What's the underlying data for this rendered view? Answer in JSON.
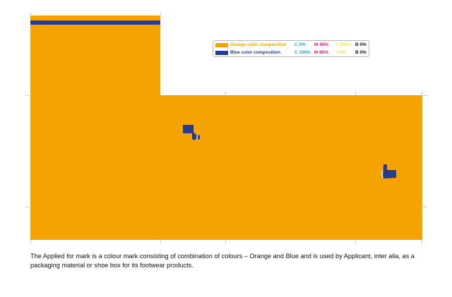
{
  "colors": {
    "orange": "#f5a300",
    "blue": "#2a3a8f",
    "cyan_text": "#1aa7d6",
    "magenta_text": "#e0148c",
    "yellow_text": "#f3e24a",
    "black_text": "#111111"
  },
  "legend": {
    "rows": [
      {
        "label": "Orange color composition",
        "c": "C 0%",
        "m": "M 40%",
        "y": "Y 100%",
        "b": "B 0%"
      },
      {
        "label": "Blue color composition",
        "c": "C 100%",
        "m": "M 85%",
        "y": "Y 0%",
        "b": "B 0%"
      }
    ]
  },
  "icons": [
    "boot-icon",
    "boot-icon"
  ],
  "caption": "The Applied for mark is a colour mark consisting of combination of colours – Orange and Blue and is used by Applicant, inter alia, as a packaging material or shoe box for its footwear products."
}
